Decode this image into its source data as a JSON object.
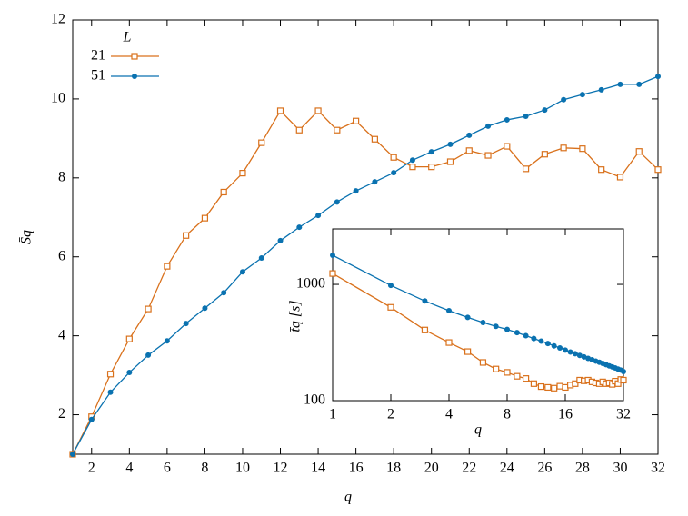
{
  "chart_data": [
    {
      "type": "line",
      "x_label": "q",
      "y_label": "S̄q",
      "legend_title": "L",
      "xlim": [
        1,
        32
      ],
      "ylim": [
        1,
        12
      ],
      "xticks": [
        2,
        4,
        6,
        8,
        10,
        12,
        14,
        16,
        18,
        20,
        22,
        24,
        26,
        28,
        30,
        32
      ],
      "yticks": [
        2,
        4,
        6,
        8,
        10,
        12
      ],
      "x": [
        1,
        2,
        3,
        4,
        5,
        6,
        7,
        8,
        9,
        10,
        11,
        12,
        13,
        14,
        15,
        16,
        17,
        18,
        19,
        20,
        21,
        22,
        23,
        24,
        25,
        26,
        27,
        28,
        29,
        30,
        31,
        32
      ],
      "series": [
        {
          "name": "21",
          "color": "#d9711c",
          "marker": "square",
          "values": [
            1.0,
            1.95,
            3.03,
            3.92,
            4.68,
            5.76,
            6.54,
            6.98,
            7.64,
            8.12,
            8.89,
            9.7,
            9.21,
            9.7,
            9.21,
            9.44,
            8.98,
            8.52,
            8.28,
            8.28,
            8.41,
            8.69,
            8.57,
            8.8,
            8.23,
            8.6,
            8.76,
            8.74,
            8.21,
            8.02,
            8.67,
            8.21
          ]
        },
        {
          "name": "51",
          "color": "#0a72b0",
          "marker": "circle",
          "values": [
            1.0,
            1.88,
            2.57,
            3.07,
            3.51,
            3.87,
            4.31,
            4.7,
            5.09,
            5.62,
            5.97,
            6.41,
            6.75,
            7.05,
            7.39,
            7.67,
            7.9,
            8.13,
            8.45,
            8.66,
            8.85,
            9.08,
            9.31,
            9.47,
            9.56,
            9.72,
            9.98,
            10.11,
            10.23,
            10.37,
            10.37,
            10.57
          ]
        }
      ]
    },
    {
      "type": "line",
      "x_label": "q",
      "y_label": "t̄q [s]",
      "xscale": "log",
      "yscale": "log",
      "xlim": [
        1,
        32
      ],
      "ylim": [
        100,
        3000
      ],
      "xticks": [
        1,
        2,
        4,
        8,
        16,
        32
      ],
      "yticks": [
        100,
        1000
      ],
      "x": [
        1,
        2,
        3,
        4,
        5,
        6,
        7,
        8,
        9,
        10,
        11,
        12,
        13,
        14,
        15,
        16,
        17,
        18,
        19,
        20,
        21,
        22,
        23,
        24,
        25,
        26,
        27,
        28,
        29,
        30,
        31,
        32
      ],
      "series": [
        {
          "color": "#d9711c",
          "marker": "square",
          "values": [
            1240,
            635,
            405,
            316,
            264,
            213,
            187,
            175,
            162,
            155,
            140,
            132,
            130,
            128,
            133,
            130,
            136,
            140,
            150,
            148,
            150,
            145,
            142,
            140,
            145,
            140,
            142,
            138,
            147,
            140,
            152,
            150
          ]
        },
        {
          "color": "#0a72b0",
          "marker": "circle",
          "values": [
            1780,
            980,
            720,
            594,
            520,
            470,
            435,
            410,
            385,
            362,
            342,
            325,
            310,
            296,
            284,
            272,
            262,
            253,
            245,
            238,
            231,
            225,
            219,
            214,
            209,
            204,
            199,
            195,
            191,
            187,
            183,
            178
          ]
        }
      ]
    }
  ]
}
